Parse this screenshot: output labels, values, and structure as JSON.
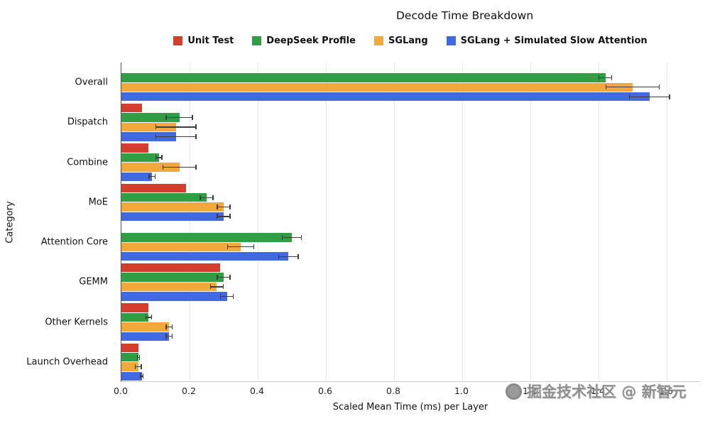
{
  "watermark": {
    "text": "掘金技术社区 @ 新智元"
  },
  "chart_data": {
    "type": "bar",
    "orientation": "horizontal",
    "title": "Decode Time Breakdown",
    "xlabel": "Scaled Mean Time (ms) per Layer",
    "ylabel": "Category",
    "xlim": [
      0,
      1.7
    ],
    "xticks": [
      0.0,
      0.2,
      0.4,
      0.6,
      0.8,
      1.0,
      1.2,
      1.4,
      1.6
    ],
    "grid": true,
    "legend_position": "top",
    "error_bars": true,
    "categories": [
      "Overall",
      "Dispatch",
      "Combine",
      "MoE",
      "Attention Core",
      "GEMM",
      "Other Kernels",
      "Launch Overhead"
    ],
    "series": [
      {
        "name": "Unit Test",
        "color": "#d53e2e",
        "values": [
          0,
          0.06,
          0.08,
          0.19,
          0,
          0.29,
          0.08,
          0.05
        ],
        "errors": [
          0,
          0,
          0,
          0,
          0,
          0,
          0,
          0
        ]
      },
      {
        "name": "DeepSeek Profile",
        "color": "#2f9e44",
        "values": [
          1.42,
          0.17,
          0.11,
          0.25,
          0.5,
          0.3,
          0.08,
          0.05
        ],
        "errors": [
          0.02,
          0.04,
          0.01,
          0.02,
          0.03,
          0.02,
          0.01,
          0.005
        ]
      },
      {
        "name": "SGLang",
        "color": "#f3a83b",
        "values": [
          1.5,
          0.16,
          0.17,
          0.3,
          0.35,
          0.28,
          0.14,
          0.05
        ],
        "errors": [
          0.08,
          0.06,
          0.05,
          0.02,
          0.04,
          0.02,
          0.01,
          0.01
        ]
      },
      {
        "name": "SGLang + Simulated Slow Attention",
        "color": "#4169e1",
        "values": [
          1.55,
          0.16,
          0.09,
          0.3,
          0.49,
          0.31,
          0.14,
          0.06
        ],
        "errors": [
          0.06,
          0.06,
          0.01,
          0.02,
          0.03,
          0.02,
          0.01,
          0.005
        ]
      }
    ]
  }
}
